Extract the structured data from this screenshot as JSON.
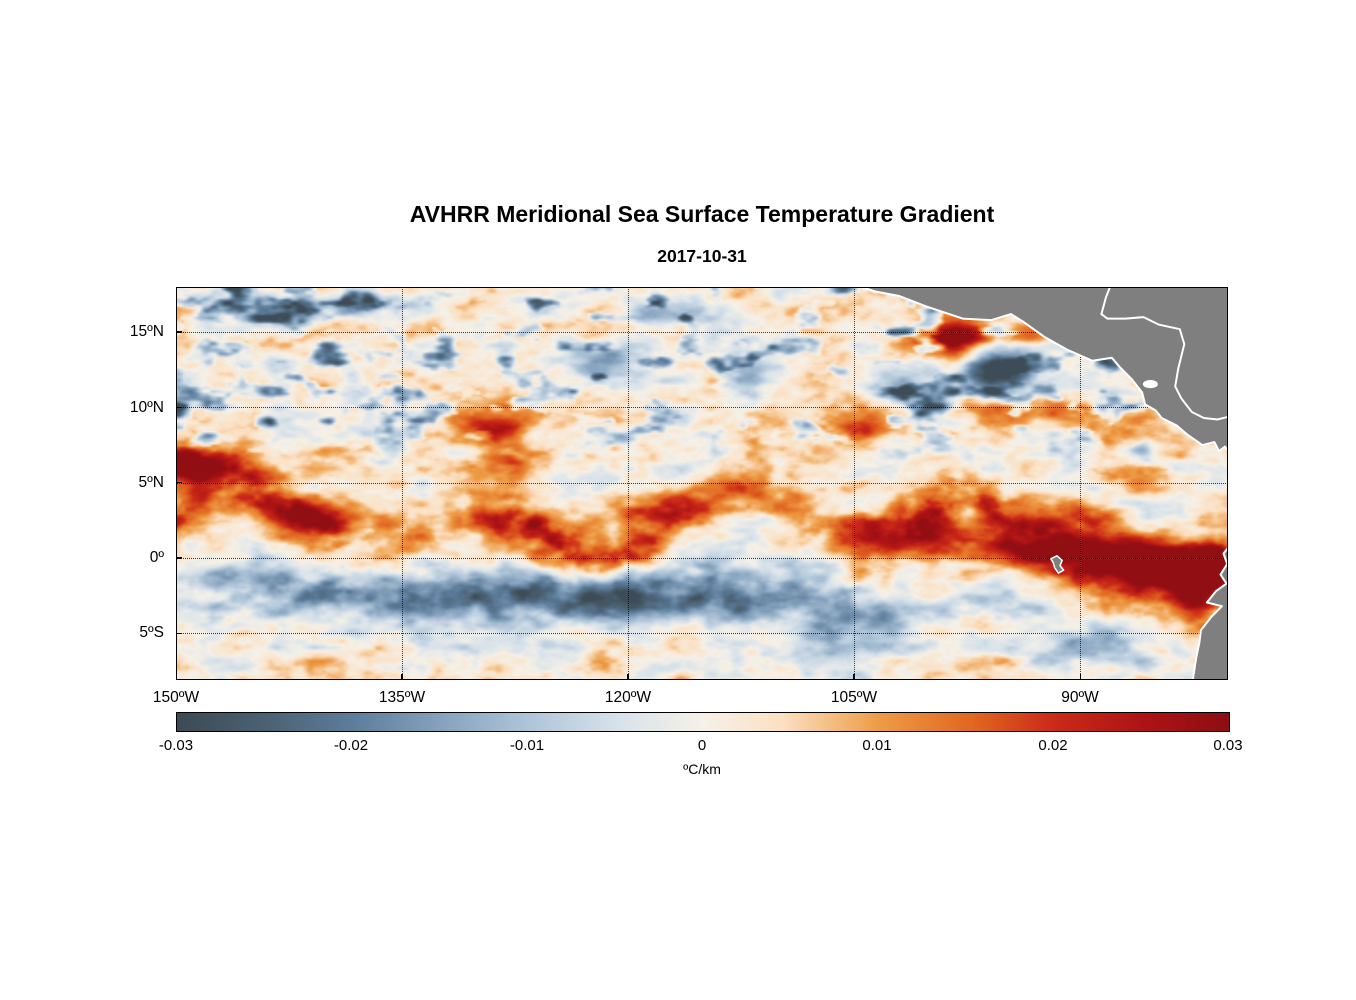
{
  "page": {
    "background": "#ffffff"
  },
  "chart_data": {
    "type": "heatmap",
    "title": "AVHRR Meridional Sea Surface Temperature Gradient",
    "subtitle": "2017-10-31",
    "colorbar_label": "ºC/km",
    "extent": {
      "lon_min": -150,
      "lon_max": -80.2,
      "lat_min": -8.1,
      "lat_max": 18.0
    },
    "x_ticks": [
      {
        "lon": -150,
        "label": "150ºW"
      },
      {
        "lon": -135,
        "label": "135ºW"
      },
      {
        "lon": -120,
        "label": "120ºW"
      },
      {
        "lon": -105,
        "label": "105ºW"
      },
      {
        "lon": -90,
        "label": "90ºW"
      }
    ],
    "y_ticks": [
      {
        "lat": 15,
        "label": "15ºN"
      },
      {
        "lat": 10,
        "label": "10ºN"
      },
      {
        "lat": 5,
        "label": "5ºN"
      },
      {
        "lat": 0,
        "label": "0º"
      },
      {
        "lat": -5,
        "label": "5ºS"
      }
    ],
    "colorbar": {
      "min": -0.03,
      "max": 0.03,
      "tick_labels": [
        "-0.03",
        "-0.02",
        "-0.01",
        "0",
        "0.01",
        "0.02",
        "0.03"
      ],
      "colormap": [
        [
          0.0,
          "#3c4a53"
        ],
        [
          0.09,
          "#4c6375"
        ],
        [
          0.167,
          "#5d7d9c"
        ],
        [
          0.26,
          "#8aa6c0"
        ],
        [
          0.333,
          "#aec4d8"
        ],
        [
          0.42,
          "#d8e2ea"
        ],
        [
          0.5,
          "#f6f1e8"
        ],
        [
          0.575,
          "#fbe0c2"
        ],
        [
          0.667,
          "#ee9c45"
        ],
        [
          0.76,
          "#e06420"
        ],
        [
          0.833,
          "#cb2a18"
        ],
        [
          0.92,
          "#ad1315"
        ],
        [
          1.0,
          "#8c0e13"
        ]
      ]
    },
    "field": {
      "bias": 0.001,
      "noise": [
        {
          "amp": 0.01,
          "fx": 0.42,
          "fy": 0.85,
          "seed": 1
        },
        {
          "amp": 0.005,
          "fx": 1.1,
          "fy": 2.2,
          "seed": 2
        }
      ],
      "front": {
        "base_lat": 2.2,
        "w1_amp": 1.5,
        "w1_freq": 0.38,
        "w2_amp": 0.9,
        "w2_freq": 0.145,
        "w2_phase": 1.3,
        "sigma": 1.25,
        "amp": 0.02,
        "amp_mod": 0.007,
        "amp_mod_freq": 0.27,
        "amp_mod_phase": 0.7,
        "east_boost": 0.01,
        "east_start": -97,
        "east_span": 10,
        "east_lat": -0.8
      },
      "west_band": {
        "lat": 5.6,
        "sigma": 0.9,
        "amp": 0.012,
        "fade_start": -128,
        "fade_span": 22
      },
      "south_band": {
        "base_lat": -2.5,
        "wav_amp": 0.5,
        "wav_freq": 0.22,
        "wav_phase": 0.8,
        "sigma": 1.3,
        "amp": 0.019,
        "lon_core_min": -147,
        "lon_core_max": -110,
        "taper": 14
      },
      "north_patches": {
        "amp": 0.05,
        "thresh": 0.15,
        "lat_start": 6,
        "lat_span": 3,
        "seed": 5,
        "fx": 0.5,
        "fy": 1.0
      },
      "blobs": [
        [
          -98.7,
          14.6,
          1.7,
          0.8,
          0.034
        ],
        [
          -95.6,
          12.5,
          1.5,
          0.95,
          -0.042
        ],
        [
          -93.2,
          14.9,
          1.3,
          0.6,
          0.02
        ],
        [
          -149.2,
          6.4,
          1.9,
          0.8,
          0.028
        ],
        [
          -122.5,
          -2.7,
          5.0,
          1.0,
          -0.02
        ],
        [
          -135.0,
          -2.3,
          3.0,
          0.85,
          -0.013
        ],
        [
          -84.6,
          -0.7,
          2.3,
          0.95,
          0.032
        ],
        [
          -82.4,
          -2.6,
          1.3,
          1.2,
          0.03
        ],
        [
          -88.2,
          0.4,
          2.1,
          0.8,
          0.024
        ],
        [
          -104.0,
          8.8,
          2.2,
          0.75,
          0.015
        ],
        [
          -129.0,
          8.8,
          1.6,
          1.0,
          0.021
        ],
        [
          -127.5,
          6.0,
          1.4,
          0.7,
          0.017
        ],
        [
          -143.0,
          16.6,
          2.3,
          0.75,
          -0.018
        ],
        [
          -136.5,
          16.9,
          1.9,
          0.6,
          -0.015
        ],
        [
          -121.5,
          13.3,
          1.9,
          0.8,
          -0.016
        ],
        [
          -117.0,
          16.3,
          1.7,
          0.7,
          -0.016
        ],
        [
          -111.5,
          12.4,
          1.7,
          0.8,
          -0.011
        ],
        [
          -104.5,
          -4.3,
          2.3,
          0.9,
          -0.013
        ],
        [
          -112.5,
          -3.6,
          2.6,
          0.9,
          -0.012
        ],
        [
          -96.0,
          -2.9,
          2.1,
          0.8,
          -0.011
        ],
        [
          -90.3,
          2.6,
          2.3,
          0.7,
          0.017
        ],
        [
          -86.2,
          5.1,
          1.6,
          0.7,
          0.012
        ],
        [
          -140.2,
          2.9,
          2.6,
          0.8,
          0.018
        ],
        [
          -118.6,
          3.2,
          2.3,
          0.75,
          0.02
        ],
        [
          -99.5,
          1.1,
          3.2,
          0.8,
          0.022
        ],
        [
          -92.6,
          0.5,
          2.6,
          0.8,
          0.022
        ],
        [
          -96.3,
          9.9,
          1.5,
          0.7,
          0.014
        ],
        [
          -91.0,
          9.6,
          1.8,
          0.7,
          0.013
        ],
        [
          -86.0,
          8.9,
          1.5,
          0.8,
          0.012
        ],
        [
          -101.8,
          11.3,
          1.4,
          0.8,
          -0.012
        ],
        [
          -88.5,
          -6.0,
          2.5,
          0.9,
          -0.013
        ],
        [
          -108.0,
          -6.2,
          2.5,
          0.9,
          -0.011
        ]
      ]
    },
    "land": {
      "fill": "#7f7f7f",
      "coast_color": "#ffffff",
      "polygons": [
        [
          [
            -106.0,
            19.0
          ],
          [
            -105.1,
            18.2
          ],
          [
            -103.6,
            17.7
          ],
          [
            -102.0,
            17.4
          ],
          [
            -100.2,
            16.7
          ],
          [
            -97.8,
            15.9
          ],
          [
            -95.9,
            15.8
          ],
          [
            -94.6,
            16.2
          ],
          [
            -93.8,
            15.7
          ],
          [
            -92.4,
            14.7
          ],
          [
            -90.8,
            13.8
          ],
          [
            -89.2,
            13.1
          ],
          [
            -87.9,
            13.3
          ],
          [
            -87.4,
            12.7
          ],
          [
            -86.6,
            11.9
          ],
          [
            -85.9,
            11.0
          ],
          [
            -85.7,
            10.2
          ],
          [
            -85.0,
            9.8
          ],
          [
            -84.6,
            9.3
          ],
          [
            -83.6,
            8.8
          ],
          [
            -82.9,
            8.2
          ],
          [
            -81.9,
            7.5
          ],
          [
            -81.1,
            7.7
          ],
          [
            -80.8,
            7.1
          ],
          [
            -80.4,
            7.4
          ],
          [
            -80.0,
            6.8
          ],
          [
            -79.5,
            7.9
          ],
          [
            -78.5,
            8.4
          ],
          [
            -76.0,
            9.0
          ],
          [
            -76.0,
            19.5
          ]
        ],
        [
          [
            -79.6,
            1.4
          ],
          [
            -80.5,
            0.3
          ],
          [
            -80.25,
            -0.4
          ],
          [
            -80.7,
            -1.1
          ],
          [
            -80.3,
            -1.7
          ],
          [
            -81.0,
            -2.2
          ],
          [
            -81.6,
            -2.95
          ],
          [
            -80.6,
            -3.2
          ],
          [
            -81.3,
            -3.9
          ],
          [
            -82.0,
            -4.8
          ],
          [
            -82.1,
            -5.6
          ],
          [
            -82.3,
            -6.6
          ],
          [
            -82.6,
            -8.5
          ],
          [
            -76.0,
            -9.0
          ],
          [
            -76.0,
            2.0
          ]
        ],
        [
          [
            -91.95,
            -0.05
          ],
          [
            -91.55,
            0.15
          ],
          [
            -91.2,
            -0.15
          ],
          [
            -91.35,
            -0.5
          ],
          [
            -91.1,
            -0.8
          ],
          [
            -91.45,
            -1.0
          ],
          [
            -91.7,
            -0.65
          ],
          [
            -91.8,
            -0.3
          ]
        ]
      ],
      "coastlines": [
        [
          [
            -87.8,
            18.6
          ],
          [
            -88.3,
            17.3
          ],
          [
            -88.6,
            16.2
          ],
          [
            -88.2,
            15.9
          ],
          [
            -87.0,
            15.9
          ],
          [
            -85.8,
            16.0
          ],
          [
            -84.8,
            15.5
          ],
          [
            -83.4,
            15.2
          ],
          [
            -83.1,
            14.2
          ],
          [
            -83.5,
            12.6
          ],
          [
            -83.7,
            11.4
          ],
          [
            -83.3,
            10.6
          ],
          [
            -82.6,
            9.7
          ],
          [
            -81.8,
            9.3
          ],
          [
            -80.9,
            9.2
          ],
          [
            -80.1,
            9.4
          ],
          [
            -79.6,
            9.0
          ],
          [
            -78.8,
            9.3
          ]
        ]
      ],
      "lakes": [
        {
          "lon": -85.35,
          "lat": 11.55,
          "rx": 0.5,
          "ry": 0.27
        }
      ]
    }
  }
}
